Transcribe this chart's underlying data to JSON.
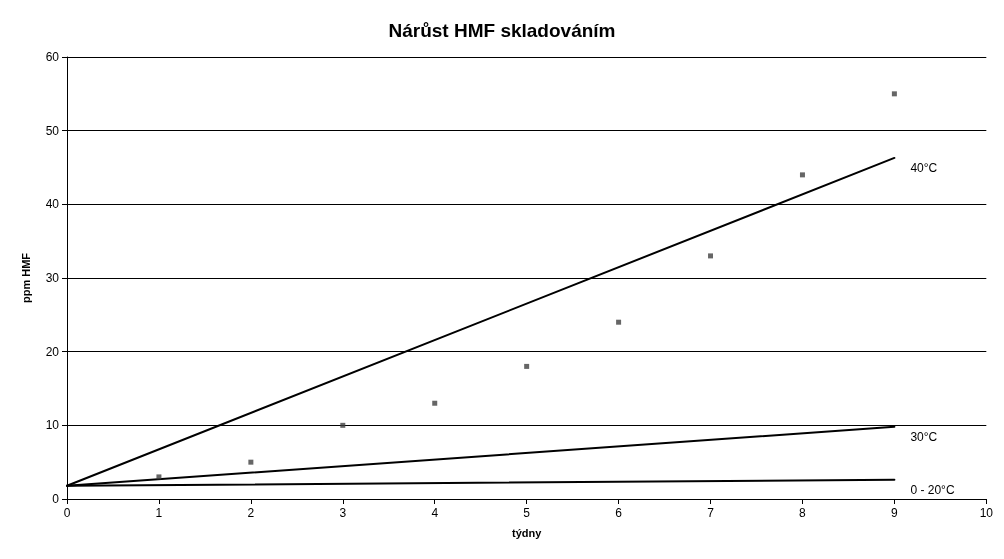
{
  "chart_data": {
    "type": "scatter",
    "title": "Nárůst HMF skladováním",
    "xlabel": "týdny",
    "ylabel": "ppm HMF",
    "xlim": [
      0,
      10
    ],
    "xticks": [
      0,
      1,
      2,
      3,
      4,
      5,
      6,
      7,
      8,
      9,
      10
    ],
    "ylim": [
      0,
      60
    ],
    "yticks": [
      0,
      10,
      20,
      30,
      40,
      50,
      60
    ],
    "grid": "y",
    "legend": false,
    "marker": "square",
    "series": [
      {
        "color": "#404040",
        "x": [
          1,
          2,
          3,
          4,
          5,
          6,
          7,
          8,
          9
        ],
        "values": [
          3,
          5,
          10,
          13,
          18,
          24,
          33,
          44,
          55
        ]
      },
      {
        "type": "line",
        "name": "40°C",
        "color": "#000000",
        "marker": "none",
        "x": [
          0,
          9
        ],
        "values": [
          1.8,
          46.3
        ]
      },
      {
        "type": "line",
        "name": "30°C",
        "color": "#000000",
        "marker": "none",
        "x": [
          0,
          9
        ],
        "values": [
          1.8,
          9.8
        ]
      },
      {
        "type": "line",
        "name": "0 - 20°C",
        "color": "#000000",
        "marker": "none",
        "x": [
          0,
          9
        ],
        "values": [
          1.8,
          2.6
        ]
      }
    ]
  }
}
